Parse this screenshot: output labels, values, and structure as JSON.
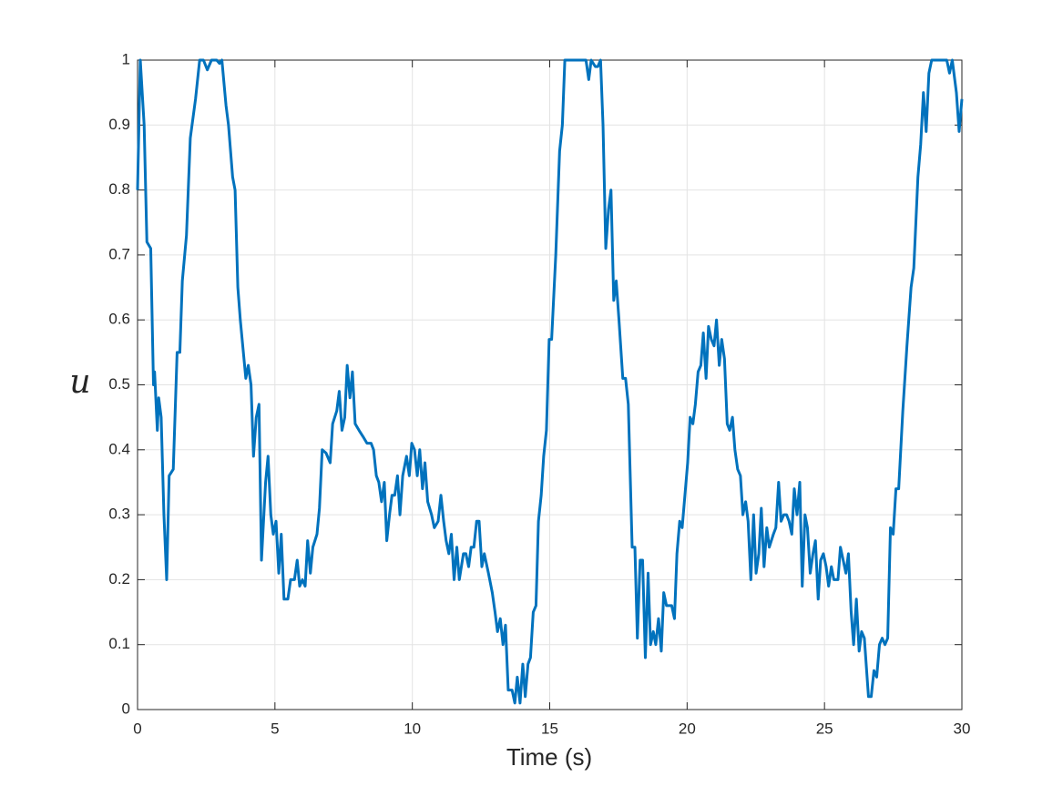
{
  "chart_data": {
    "type": "line",
    "x_label": "Time (s)",
    "y_label": "u",
    "color": "#0072bd",
    "grid": true,
    "xlim": [
      0,
      30
    ],
    "ylim": [
      0,
      1
    ],
    "xticks": [
      0,
      5,
      10,
      15,
      20,
      25,
      30
    ],
    "yticks": [
      0,
      0.1,
      0.2,
      0.3,
      0.4,
      0.5,
      0.6,
      0.7,
      0.8,
      0.9,
      1
    ],
    "x": [
      0,
      0.1,
      0.24,
      0.34,
      0.48,
      0.58,
      0.62,
      0.72,
      0.77,
      0.86,
      0.96,
      1.06,
      1.15,
      1.3,
      1.44,
      1.54,
      1.63,
      1.78,
      1.92,
      2.11,
      2.26,
      2.4,
      2.54,
      2.69,
      2.88,
      2.98,
      3.07,
      3.22,
      3.31,
      3.46,
      3.55,
      3.65,
      3.74,
      3.94,
      4.03,
      4.13,
      4.22,
      4.32,
      4.42,
      4.51,
      4.66,
      4.75,
      4.85,
      4.94,
      5.04,
      5.14,
      5.23,
      5.33,
      5.47,
      5.57,
      5.71,
      5.81,
      5.9,
      6.0,
      6.1,
      6.19,
      6.29,
      6.38,
      6.53,
      6.62,
      6.72,
      6.86,
      7.01,
      7.1,
      7.25,
      7.34,
      7.44,
      7.54,
      7.63,
      7.73,
      7.82,
      7.92,
      8.06,
      8.21,
      8.35,
      8.5,
      8.59,
      8.69,
      8.78,
      8.88,
      8.98,
      9.07,
      9.17,
      9.26,
      9.36,
      9.46,
      9.55,
      9.65,
      9.79,
      9.89,
      9.98,
      10.08,
      10.18,
      10.27,
      10.37,
      10.46,
      10.56,
      10.7,
      10.8,
      10.94,
      11.04,
      11.14,
      11.23,
      11.33,
      11.42,
      11.52,
      11.62,
      11.71,
      11.86,
      11.95,
      12.05,
      12.14,
      12.24,
      12.34,
      12.43,
      12.53,
      12.62,
      12.77,
      12.91,
      13.01,
      13.1,
      13.2,
      13.3,
      13.39,
      13.49,
      13.63,
      13.73,
      13.82,
      13.92,
      14.02,
      14.11,
      14.21,
      14.3,
      14.4,
      14.5,
      14.59,
      14.69,
      14.78,
      14.88,
      14.98,
      15.07,
      15.22,
      15.36,
      15.46,
      15.55,
      15.84,
      16.13,
      16.32,
      16.42,
      16.51,
      16.66,
      16.75,
      16.85,
      16.94,
      17.04,
      17.14,
      17.23,
      17.33,
      17.42,
      17.52,
      17.66,
      17.76,
      17.86,
      18.0,
      18.1,
      18.19,
      18.29,
      18.38,
      18.48,
      18.58,
      18.67,
      18.77,
      18.86,
      18.96,
      19.06,
      19.15,
      19.25,
      19.34,
      19.44,
      19.54,
      19.63,
      19.73,
      19.82,
      19.92,
      20.02,
      20.11,
      20.21,
      20.3,
      20.4,
      20.5,
      20.59,
      20.69,
      20.78,
      20.88,
      20.98,
      21.07,
      21.17,
      21.26,
      21.36,
      21.46,
      21.55,
      21.65,
      21.74,
      21.84,
      21.94,
      22.03,
      22.13,
      22.22,
      22.32,
      22.42,
      22.51,
      22.61,
      22.7,
      22.8,
      22.9,
      22.99,
      23.14,
      23.23,
      23.33,
      23.42,
      23.52,
      23.62,
      23.71,
      23.81,
      23.9,
      24.0,
      24.1,
      24.19,
      24.29,
      24.38,
      24.48,
      24.58,
      24.67,
      24.77,
      24.86,
      24.96,
      25.06,
      25.15,
      25.25,
      25.34,
      25.49,
      25.58,
      25.68,
      25.78,
      25.87,
      25.97,
      26.06,
      26.16,
      26.26,
      26.35,
      26.45,
      26.6,
      26.7,
      26.8,
      26.9,
      27.0,
      27.1,
      27.2,
      27.3,
      27.4,
      27.5,
      27.6,
      27.7,
      27.85,
      28.0,
      28.15,
      28.25,
      28.4,
      28.5,
      28.6,
      28.7,
      28.8,
      28.9,
      29.1,
      29.3,
      29.45,
      29.55,
      29.65,
      29.8,
      29.9,
      30.0
    ],
    "values": [
      0.8,
      1.0,
      0.9,
      0.72,
      0.71,
      0.5,
      0.52,
      0.43,
      0.48,
      0.45,
      0.3,
      0.2,
      0.36,
      0.37,
      0.55,
      0.55,
      0.66,
      0.73,
      0.88,
      0.94,
      1.0,
      1.0,
      0.985,
      1.0,
      1.0,
      0.995,
      1.0,
      0.93,
      0.9,
      0.82,
      0.8,
      0.65,
      0.6,
      0.51,
      0.53,
      0.5,
      0.39,
      0.45,
      0.47,
      0.23,
      0.35,
      0.39,
      0.3,
      0.27,
      0.29,
      0.21,
      0.27,
      0.17,
      0.17,
      0.2,
      0.2,
      0.23,
      0.19,
      0.2,
      0.19,
      0.26,
      0.21,
      0.25,
      0.27,
      0.31,
      0.4,
      0.395,
      0.38,
      0.44,
      0.46,
      0.49,
      0.43,
      0.45,
      0.53,
      0.48,
      0.52,
      0.44,
      0.43,
      0.42,
      0.41,
      0.41,
      0.4,
      0.36,
      0.35,
      0.32,
      0.35,
      0.26,
      0.3,
      0.33,
      0.33,
      0.36,
      0.3,
      0.36,
      0.39,
      0.36,
      0.41,
      0.4,
      0.36,
      0.4,
      0.34,
      0.38,
      0.32,
      0.3,
      0.28,
      0.29,
      0.33,
      0.29,
      0.26,
      0.24,
      0.27,
      0.2,
      0.25,
      0.2,
      0.24,
      0.24,
      0.22,
      0.25,
      0.25,
      0.29,
      0.29,
      0.22,
      0.24,
      0.21,
      0.18,
      0.15,
      0.12,
      0.14,
      0.1,
      0.13,
      0.03,
      0.03,
      0.01,
      0.05,
      0.01,
      0.07,
      0.02,
      0.07,
      0.08,
      0.15,
      0.16,
      0.29,
      0.33,
      0.39,
      0.43,
      0.57,
      0.57,
      0.7,
      0.86,
      0.9,
      1.0,
      1.0,
      1.0,
      1.0,
      0.97,
      1.0,
      0.99,
      0.99,
      1.0,
      0.9,
      0.71,
      0.77,
      0.8,
      0.63,
      0.66,
      0.6,
      0.51,
      0.51,
      0.47,
      0.25,
      0.25,
      0.11,
      0.23,
      0.23,
      0.08,
      0.21,
      0.1,
      0.12,
      0.1,
      0.14,
      0.09,
      0.18,
      0.16,
      0.16,
      0.16,
      0.14,
      0.24,
      0.29,
      0.28,
      0.33,
      0.38,
      0.45,
      0.44,
      0.47,
      0.52,
      0.53,
      0.58,
      0.51,
      0.59,
      0.57,
      0.56,
      0.6,
      0.53,
      0.57,
      0.54,
      0.44,
      0.43,
      0.45,
      0.4,
      0.37,
      0.36,
      0.3,
      0.32,
      0.29,
      0.2,
      0.3,
      0.21,
      0.24,
      0.31,
      0.22,
      0.28,
      0.25,
      0.27,
      0.28,
      0.35,
      0.29,
      0.3,
      0.3,
      0.29,
      0.27,
      0.34,
      0.3,
      0.35,
      0.19,
      0.3,
      0.28,
      0.21,
      0.24,
      0.26,
      0.17,
      0.23,
      0.24,
      0.22,
      0.19,
      0.22,
      0.2,
      0.2,
      0.25,
      0.23,
      0.21,
      0.24,
      0.15,
      0.1,
      0.17,
      0.09,
      0.12,
      0.11,
      0.02,
      0.02,
      0.06,
      0.05,
      0.1,
      0.11,
      0.1,
      0.11,
      0.28,
      0.27,
      0.34,
      0.34,
      0.46,
      0.56,
      0.65,
      0.68,
      0.82,
      0.87,
      0.95,
      0.89,
      0.98,
      1.0,
      1.0,
      1.0,
      1.0,
      0.98,
      1.0,
      0.95,
      0.89,
      0.94
    ]
  }
}
